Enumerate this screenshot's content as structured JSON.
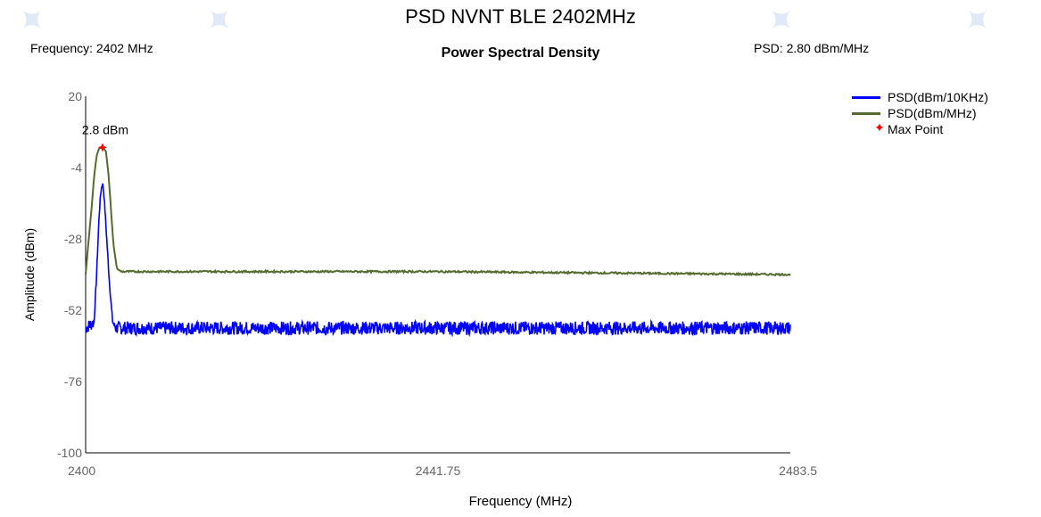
{
  "page_title": "PSD NVNT BLE 2402MHz",
  "frequency_readout": "Frequency: 2402 MHz",
  "psd_readout": "PSD: 2.80 dBm/MHz",
  "colors": {
    "series_10khz": "#0000ff",
    "series_mhz": "#556b2f",
    "max_point": "#ff0000",
    "axis": "#000000",
    "tick_text": "#666666"
  },
  "chart_data": {
    "type": "line",
    "title": "Power Spectral Density",
    "xlabel": "Frequency (MHz)",
    "ylabel": "Amplitude (dBm)",
    "xlim": [
      2400,
      2483.5
    ],
    "ylim": [
      -100,
      20
    ],
    "x_ticks": [
      "2400",
      "2441.75",
      "2483.5"
    ],
    "y_ticks": [
      "20",
      "-4",
      "-28",
      "-52",
      "-76",
      "-100"
    ],
    "grid": false,
    "legend_position": "top-right",
    "series": [
      {
        "name": "PSD(dBm/10KHz)",
        "color": "#0000ff",
        "noise_floor": -58,
        "x": [
          2400,
          2401.0,
          2401.3,
          2401.6,
          2401.8,
          2402.0,
          2402.2,
          2402.5,
          2402.8,
          2403.2,
          2403.6,
          2483.5
        ],
        "y": [
          -58,
          -56,
          -40,
          -20,
          -12,
          -9,
          -14,
          -28,
          -42,
          -56,
          -58,
          -58
        ]
      },
      {
        "name": "PSD(dBm/MHz)",
        "color": "#556b2f",
        "x": [
          2400,
          2400.3,
          2400.7,
          2401.0,
          2401.3,
          2401.6,
          2402.0,
          2402.4,
          2402.7,
          2403.0,
          2403.3,
          2403.7,
          2404.2,
          2441.75,
          2483.5
        ],
        "y": [
          -40,
          -30,
          -18,
          -7,
          0,
          2.5,
          2.8,
          1.5,
          -6,
          -18,
          -30,
          -38,
          -39,
          -39,
          -40
        ]
      },
      {
        "name": "Max Point",
        "color": "#ff0000",
        "x": [
          2402
        ],
        "y": [
          2.8
        ]
      }
    ],
    "annotations": [
      {
        "text": "2.8 dBm",
        "x": 2402,
        "y": 2.8
      }
    ]
  }
}
